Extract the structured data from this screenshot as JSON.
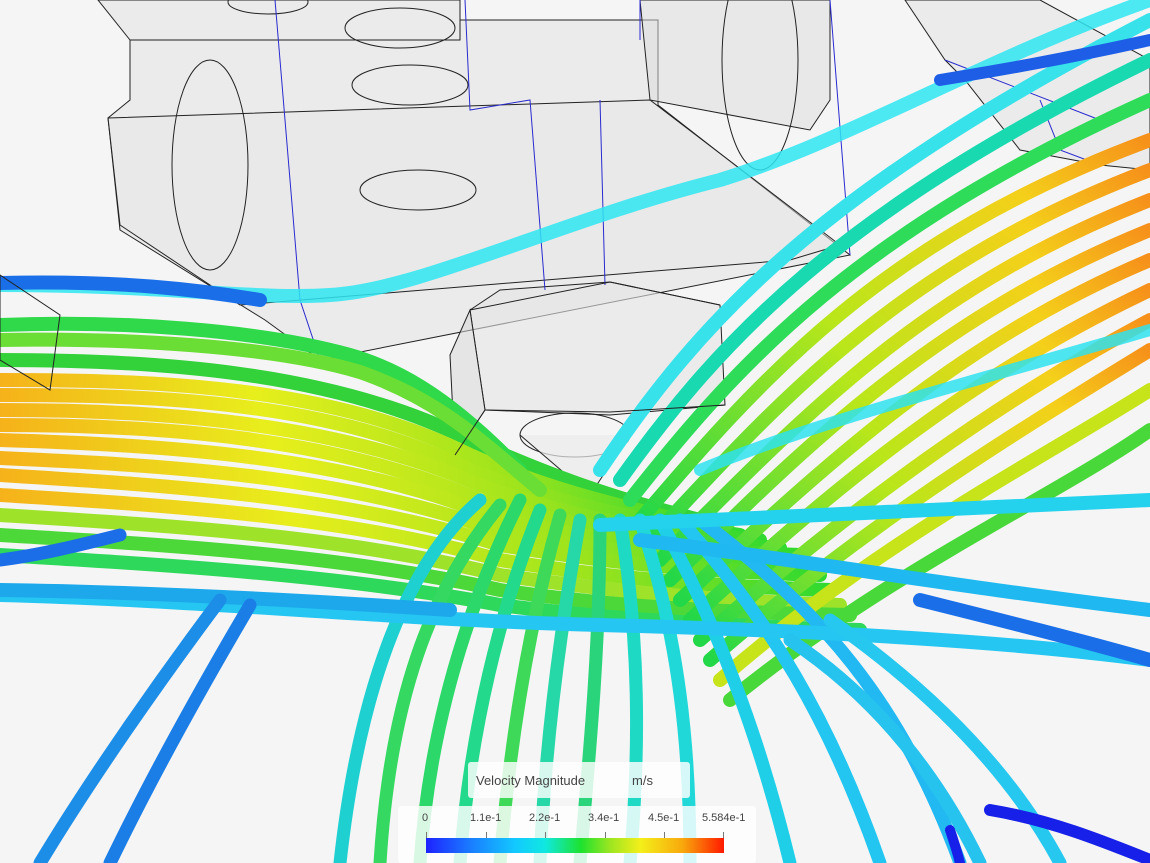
{
  "legend": {
    "title": "Velocity Magnitude",
    "unit": "m/s",
    "ticks": [
      "0",
      "1.1e-1",
      "2.2e-1",
      "3.4e-1",
      "4.5e-1",
      "5.584e-1"
    ],
    "min": 0,
    "max": 0.5584,
    "colormap": [
      "#1e22ff",
      "#1a7dff",
      "#12c9ff",
      "#10e8e0",
      "#1de22e",
      "#9ee620",
      "#f4ef1a",
      "#f8a90c",
      "#ff1a00"
    ]
  }
}
